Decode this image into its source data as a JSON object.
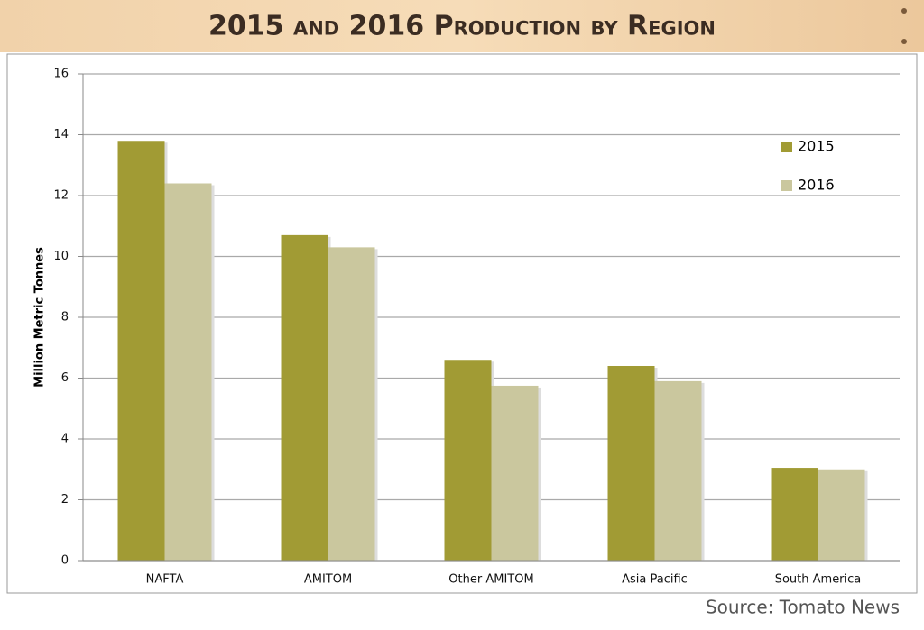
{
  "chart_data": {
    "type": "bar",
    "title": "2015 and 2016 Production by Region",
    "ylabel": "Million Metric Tonnes",
    "source": "Source: Tomato News",
    "categories": [
      "NAFTA",
      "AMITOM",
      "Other AMITOM",
      "Asia Pacific",
      "South America"
    ],
    "series": [
      {
        "name": "2015",
        "color": "#a19b34",
        "values": [
          13.8,
          10.7,
          6.6,
          6.4,
          3.05
        ]
      },
      {
        "name": "2016",
        "color": "#cac79e",
        "values": [
          12.4,
          10.3,
          5.75,
          5.9,
          3.0
        ]
      }
    ],
    "ylim": [
      0,
      16
    ],
    "yticks": [
      0,
      2,
      4,
      6,
      8,
      10,
      12,
      14,
      16
    ],
    "grid": true,
    "legend": "upper right"
  }
}
